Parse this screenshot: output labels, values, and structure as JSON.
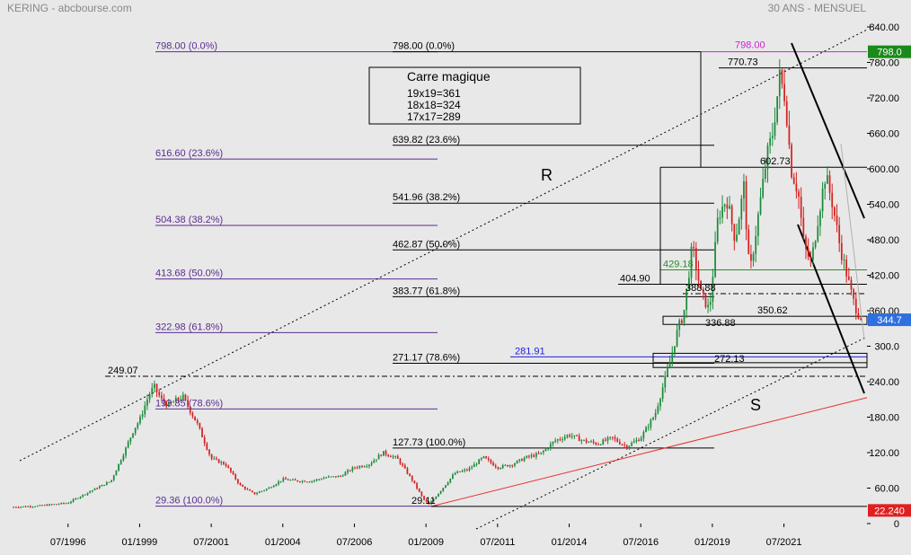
{
  "header": {
    "left_title": "KERING - abcbourse.com",
    "right_title": "30 ANS - MENSUEL"
  },
  "infobox": {
    "title": "Carre magique",
    "lines": [
      "19x19=361",
      "18x18=324",
      "17x17=289"
    ]
  },
  "colors": {
    "background": "#e8e8e8",
    "price_up": "#1a8a3a",
    "price_down": "#d42020",
    "fib_left": "#5a2d91",
    "fib_right": "#000000",
    "support_line": "#e83030",
    "trend_line": "#000000",
    "badge_last": "#2f6fe0",
    "badge_high": "#1a8a1a",
    "badge_low": "#e02020",
    "magenta": "#d020d0",
    "blue_level": "#2020e0",
    "green_level": "#2a8a2a"
  },
  "chart_data": {
    "type": "candlestick",
    "title": "KERING - abcbourse.com",
    "subtitle": "30 ANS - MENSUEL",
    "ylim": [
      0,
      840
    ],
    "y_ticks": [
      0,
      60,
      120,
      180,
      240,
      300,
      360,
      420,
      480,
      540,
      600,
      660,
      720,
      780,
      840
    ],
    "y_tick_labels": [
      "0",
      "60.00",
      "120.00",
      "180.00",
      "240.00",
      "300.0",
      "360.00",
      "420.00",
      "480.00",
      "540.00",
      "600.00",
      "660.00",
      "720.00",
      "780.00",
      "840.00"
    ],
    "x_tick_labels": [
      "07/1996",
      "01/1999",
      "07/2001",
      "01/2004",
      "07/2006",
      "01/2009",
      "07/2011",
      "01/2014",
      "07/2016",
      "01/2019",
      "07/2021"
    ],
    "x_ticks": [
      1996.5,
      1999.0,
      2001.5,
      2004.0,
      2006.5,
      2009.0,
      2011.5,
      2014.0,
      2016.5,
      2019.0,
      2021.5
    ],
    "xlim": [
      1994.5,
      2024.4
    ],
    "price_path": [
      [
        1994.6,
        28
      ],
      [
        1995.5,
        30
      ],
      [
        1996.5,
        35
      ],
      [
        1997.0,
        48
      ],
      [
        1997.5,
        60
      ],
      [
        1998.0,
        72
      ],
      [
        1998.5,
        125
      ],
      [
        1998.8,
        160
      ],
      [
        1999.0,
        175
      ],
      [
        1999.3,
        215
      ],
      [
        1999.5,
        232
      ],
      [
        1999.75,
        210
      ],
      [
        2000.0,
        200
      ],
      [
        2000.5,
        215
      ],
      [
        2001.0,
        170
      ],
      [
        2001.5,
        110
      ],
      [
        2002.0,
        100
      ],
      [
        2002.5,
        65
      ],
      [
        2003.0,
        50
      ],
      [
        2003.5,
        60
      ],
      [
        2004.0,
        75
      ],
      [
        2004.5,
        72
      ],
      [
        2005.0,
        72
      ],
      [
        2005.5,
        78
      ],
      [
        2006.0,
        80
      ],
      [
        2006.5,
        95
      ],
      [
        2007.0,
        100
      ],
      [
        2007.5,
        120
      ],
      [
        2008.0,
        110
      ],
      [
        2008.5,
        75
      ],
      [
        2008.9,
        42
      ],
      [
        2009.1,
        32
      ],
      [
        2009.5,
        55
      ],
      [
        2010.0,
        85
      ],
      [
        2010.5,
        92
      ],
      [
        2011.0,
        112
      ],
      [
        2011.5,
        95
      ],
      [
        2012.0,
        100
      ],
      [
        2012.5,
        112
      ],
      [
        2013.0,
        118
      ],
      [
        2013.5,
        140
      ],
      [
        2014.0,
        150
      ],
      [
        2014.5,
        140
      ],
      [
        2015.0,
        135
      ],
      [
        2015.5,
        145
      ],
      [
        2016.0,
        130
      ],
      [
        2016.5,
        145
      ],
      [
        2017.0,
        185
      ],
      [
        2017.5,
        270
      ],
      [
        2017.8,
        330
      ],
      [
        2018.0,
        355
      ],
      [
        2018.3,
        470
      ],
      [
        2018.6,
        390
      ],
      [
        2018.9,
        360
      ],
      [
        2019.2,
        520
      ],
      [
        2019.5,
        550
      ],
      [
        2019.8,
        480
      ],
      [
        2020.1,
        570
      ],
      [
        2020.3,
        420
      ],
      [
        2020.6,
        520
      ],
      [
        2020.9,
        620
      ],
      [
        2021.1,
        660
      ],
      [
        2021.35,
        755
      ],
      [
        2021.55,
        720
      ],
      [
        2021.75,
        600
      ],
      [
        2022.0,
        560
      ],
      [
        2022.2,
        470
      ],
      [
        2022.45,
        440
      ],
      [
        2022.7,
        520
      ],
      [
        2022.95,
        590
      ],
      [
        2023.2,
        540
      ],
      [
        2023.45,
        470
      ],
      [
        2023.7,
        420
      ],
      [
        2023.9,
        380
      ],
      [
        2024.05,
        360
      ],
      [
        2024.2,
        344.7
      ]
    ],
    "fib_left": [
      {
        "label": "798.00  (0.0%)",
        "value": 798
      },
      {
        "label": "616.60  (23.6%)",
        "value": 616.6
      },
      {
        "label": "504.38  (38.2%)",
        "value": 504.38
      },
      {
        "label": "413.68  (50.0%)",
        "value": 413.68
      },
      {
        "label": "322.98  (61.8%)",
        "value": 322.98
      },
      {
        "label": "193.85  (78.6%)",
        "value": 193.85
      },
      {
        "label": "29.36  (100.0%)",
        "value": 29.36
      }
    ],
    "fib_right": [
      {
        "label": "798.00  (0.0%)",
        "value": 798
      },
      {
        "label": "639.82  (23.6%)",
        "value": 639.82
      },
      {
        "label": "541.96  (38.2%)",
        "value": 541.96
      },
      {
        "label": "462.87  (50.0%)",
        "value": 462.87
      },
      {
        "label": "383.77  (61.8%)",
        "value": 383.77
      },
      {
        "label": "271.17  (78.6%)",
        "value": 271.17
      },
      {
        "label": "127.73  (100.0%)",
        "value": 127.73
      }
    ],
    "annotations": {
      "level_249": "249.07",
      "low_2009": "29.11",
      "level_281": "281.91",
      "level_272": "272.13",
      "level_336": "336.88",
      "level_350": "350.62",
      "level_388": "388.88",
      "level_404": "404.90",
      "level_429": "429.18",
      "level_602": "602.73",
      "level_770": "770.73",
      "level_798": "798.00",
      "letter_r": "R",
      "letter_s": "S"
    },
    "badges": {
      "high": "798.0",
      "last": "344.7",
      "low": "22.240"
    }
  }
}
